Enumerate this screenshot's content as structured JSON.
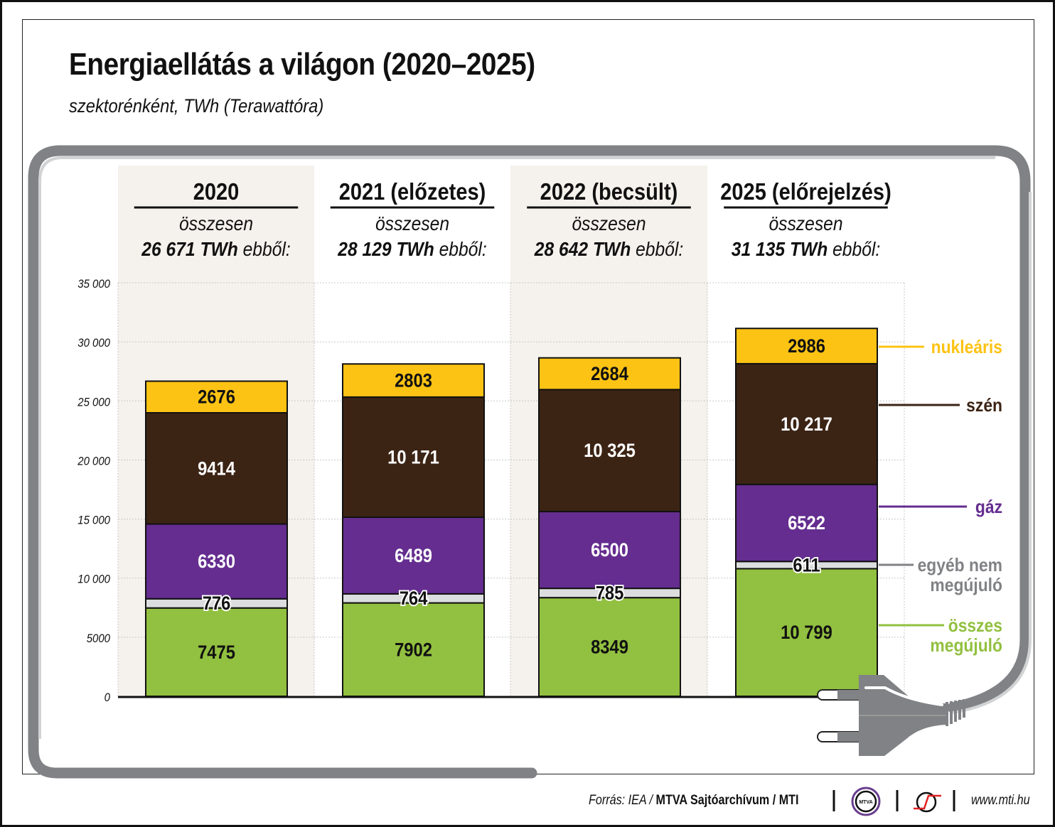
{
  "title": "Energiaellátás a világon (2020–2025)",
  "subtitle": "szektorénként, TWh (Terawattóra)",
  "footer": {
    "source_prefix": "Forrás: IEA / ",
    "source_bold": "MTVA Sajtóarchívum / MTI",
    "logo_mtva": "MTVA",
    "url": "www.mti.hu"
  },
  "colors": {
    "nuclear": "#FDC314",
    "coal": "#3C2415",
    "gas": "#642D8F",
    "other": "#DCDDDE",
    "renewable": "#92C040",
    "band": "#F5F1EC",
    "cable": "#808285",
    "cable_light": "#D1D3D4",
    "other_label": "#808285"
  },
  "chart_data": {
    "type": "bar",
    "stacked": true,
    "title": "Energiaellátás a világon (2020–2025)",
    "subtitle": "szektorénként, TWh (Terawattóra)",
    "xlabel": "",
    "ylabel": "",
    "ylim": [
      0,
      35000
    ],
    "yticks": [
      0,
      5000,
      10000,
      15000,
      20000,
      25000,
      30000,
      35000
    ],
    "ytick_labels": [
      "0",
      "5000",
      "10 000",
      "15 000",
      "20 000",
      "25 000",
      "30 000",
      "35 000"
    ],
    "grid": true,
    "legend_placement": "right",
    "categories": [
      "2020",
      "2021 (előzetes)",
      "2022 (becsült)",
      "2025 (előrejelzés)"
    ],
    "totals_caption": "összesen",
    "totals": [
      {
        "value": "26 671 TWh",
        "suffix": " ebből:"
      },
      {
        "value": "28 129 TWh",
        "suffix": " ebből:"
      },
      {
        "value": "28 642 TWh",
        "suffix": " ebből:"
      },
      {
        "value": "31 135 TWh",
        "suffix": " ebből:"
      }
    ],
    "series": [
      {
        "key": "renewable",
        "name": "összes megújuló",
        "legend_lines": [
          "összes",
          "megújuló"
        ],
        "values": [
          7475,
          7902,
          8349,
          10799
        ],
        "labels": [
          "7475",
          "7902",
          "8349",
          "10 799"
        ]
      },
      {
        "key": "other",
        "name": "egyéb nem megújuló",
        "legend_lines": [
          "egyéb nem",
          "megújuló"
        ],
        "values": [
          776,
          764,
          785,
          611
        ],
        "labels": [
          "776",
          "764",
          "785",
          "611"
        ]
      },
      {
        "key": "gas",
        "name": "gáz",
        "legend_lines": [
          "gáz"
        ],
        "values": [
          6330,
          6489,
          6500,
          6522
        ],
        "labels": [
          "6330",
          "6489",
          "6500",
          "6522"
        ]
      },
      {
        "key": "coal",
        "name": "szén",
        "legend_lines": [
          "szén"
        ],
        "values": [
          9414,
          10171,
          10325,
          10217
        ],
        "labels": [
          "9414",
          "10 171",
          "10 325",
          "10 217"
        ]
      },
      {
        "key": "nuclear",
        "name": "nukleáris",
        "legend_lines": [
          "nukleáris"
        ],
        "values": [
          2676,
          2803,
          2684,
          2986
        ],
        "labels": [
          "2676",
          "2803",
          "2684",
          "2986"
        ]
      }
    ]
  }
}
